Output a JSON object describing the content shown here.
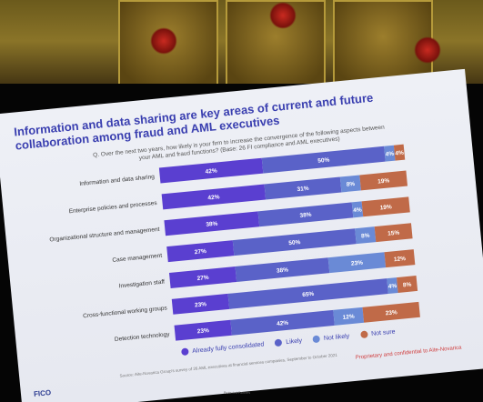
{
  "slide": {
    "title": "Information and data sharing are key areas of current and future collaboration among fraud and AML executives",
    "question": "Q. Over the next two years, how likely is your firm to increase the convergence of the following aspects between your AML and fraud functions? (Base: 26 FI compliance and AML executives)",
    "source": "Source: Aite-Novarica Group's survey of 26 AML executives at financial services companies, September to October 2021",
    "logo": "FICO",
    "confidential": "Proprietary and confidential to Aite-Novarica",
    "footer_tag": "Protected Partners"
  },
  "chart_data": {
    "type": "bar",
    "orientation": "horizontal",
    "stacked": true,
    "categories": [
      "Information and data sharing",
      "Enterprise policies and processes",
      "Organizational structure and management",
      "Case management",
      "Investigation staff",
      "Cross-functional working groups",
      "Detection technology"
    ],
    "series": [
      {
        "name": "Already fully consolidated",
        "color": "#5a3fd0",
        "values": [
          42,
          42,
          38,
          27,
          27,
          23,
          23
        ]
      },
      {
        "name": "Likely",
        "color": "#5a62c8",
        "values": [
          50,
          31,
          38,
          50,
          38,
          65,
          42
        ]
      },
      {
        "name": "Not likely",
        "color": "#6a8ad6",
        "values": [
          4,
          8,
          4,
          8,
          23,
          4,
          12
        ]
      },
      {
        "name": "Not sure",
        "color": "#c06a48",
        "values": [
          4,
          19,
          19,
          15,
          12,
          8,
          23
        ]
      }
    ],
    "legend_position": "bottom",
    "grid": false
  }
}
